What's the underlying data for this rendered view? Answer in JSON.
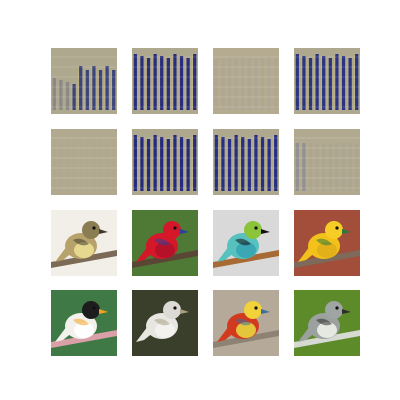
{
  "grid": {
    "rows": 4,
    "cols": 4,
    "background": "#ffffff",
    "cells": [
      {
        "name": "noise-tile-1",
        "kind": "noise",
        "pattern": "partial-stripes",
        "bg": "#aea88e",
        "stripe": "#1f2a78"
      },
      {
        "name": "noise-tile-2",
        "kind": "noise",
        "pattern": "dense-stripes",
        "bg": "#aea88e",
        "stripe": "#10187a"
      },
      {
        "name": "noise-tile-3",
        "kind": "noise",
        "pattern": "faint",
        "bg": "#b4ab91",
        "stripe": "#8e8fa0"
      },
      {
        "name": "noise-tile-4",
        "kind": "noise",
        "pattern": "dense-stripes",
        "bg": "#aea88e",
        "stripe": "#14207e"
      },
      {
        "name": "noise-tile-5",
        "kind": "noise",
        "pattern": "faint",
        "bg": "#b2aa90",
        "stripe": "#a59a8f"
      },
      {
        "name": "noise-tile-6",
        "kind": "noise",
        "pattern": "dense-stripes",
        "bg": "#aea88e",
        "stripe": "#0c147a"
      },
      {
        "name": "noise-tile-7",
        "kind": "noise",
        "pattern": "dense-stripes",
        "bg": "#aea88e",
        "stripe": "#0e1a82"
      },
      {
        "name": "noise-tile-8",
        "kind": "noise",
        "pattern": "faint-left",
        "bg": "#b2aa90",
        "stripe": "#6b7090"
      },
      {
        "name": "bird-flycatcher",
        "kind": "bird",
        "bg": "#f2efe9",
        "body": "#b7a26b",
        "belly": "#e6d98f",
        "head": "#8b7d52",
        "accent": "#3e3a2e",
        "branch": "#7b6a55"
      },
      {
        "name": "bird-red-lory",
        "kind": "bird",
        "bg": "#4f7a35",
        "body": "#d4182a",
        "belly": "#b5122a",
        "head": "#d4182a",
        "accent": "#2d3f9c",
        "branch": "#5a4634"
      },
      {
        "name": "bird-tanager",
        "kind": "bird",
        "bg": "#d9d9d9",
        "body": "#57c1c0",
        "belly": "#3aa7b5",
        "head": "#8bc43a",
        "accent": "#111111",
        "branch": "#a86a35"
      },
      {
        "name": "bird-yellow-parrot",
        "kind": "bird",
        "bg": "#a24e3a",
        "body": "#f3c21a",
        "belly": "#e2b018",
        "head": "#f6cc26",
        "accent": "#2d7a3a",
        "branch": "#7d6a5a"
      },
      {
        "name": "bird-caique",
        "kind": "bird",
        "bg": "#3f7a46",
        "body": "#f3f1ec",
        "belly": "#ffffff",
        "head": "#1d1d1d",
        "accent": "#f1a21f",
        "branch": "#d9a0a8"
      },
      {
        "name": "bird-shoebill",
        "kind": "bird",
        "bg": "#3a3f2c",
        "body": "#e8e6e1",
        "belly": "#f4f2ef",
        "head": "#dcdad4",
        "accent": "#a89f84",
        "branch": "#3a3f2c"
      },
      {
        "name": "bird-golden-pheasant",
        "kind": "bird",
        "bg": "#b5a99a",
        "body": "#d23a1f",
        "belly": "#e5c53b",
        "head": "#f2d23a",
        "accent": "#3c6e9c",
        "branch": "#8e8274"
      },
      {
        "name": "bird-kingbird",
        "kind": "bird",
        "bg": "#5e8b2a",
        "body": "#9aa19e",
        "belly": "#e6e8e2",
        "head": "#9ea5a2",
        "accent": "#2e2e2e",
        "branch": "#d7d9d3"
      }
    ]
  }
}
